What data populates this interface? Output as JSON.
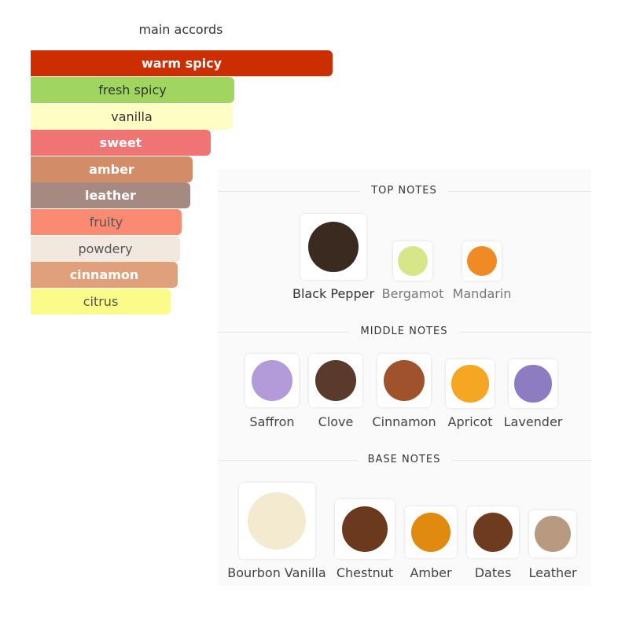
{
  "accords": {
    "title": "main accords",
    "items": [
      {
        "name": "warm spicy",
        "color": "#cc2e02"
      },
      {
        "name": "fresh spicy",
        "color": "#a0d65f"
      },
      {
        "name": "vanilla",
        "color": "#fdfdc4"
      },
      {
        "name": "sweet",
        "color": "#f07474"
      },
      {
        "name": "amber",
        "color": "#d38c68"
      },
      {
        "name": "leather",
        "color": "#a68a82"
      },
      {
        "name": "fruity",
        "color": "#fb8a72"
      },
      {
        "name": "powdery",
        "color": "#f1e9e0"
      },
      {
        "name": "cinnamon",
        "color": "#e0a07c"
      },
      {
        "name": "citrus",
        "color": "#fbfb8a"
      }
    ]
  },
  "notes": [
    {
      "title": "TOP NOTES",
      "items": [
        "Black Pepper",
        "Bergamot",
        "Mandarin"
      ]
    },
    {
      "title": "MIDDLE NOTES",
      "items": [
        "Saffron",
        "Clove",
        "Cinnamon",
        "Apricot",
        "Lavender"
      ]
    },
    {
      "title": "BASE NOTES",
      "items": [
        "Bourbon Vanilla",
        "Chestnut",
        "Amber",
        "Dates",
        "Leather"
      ]
    }
  ]
}
